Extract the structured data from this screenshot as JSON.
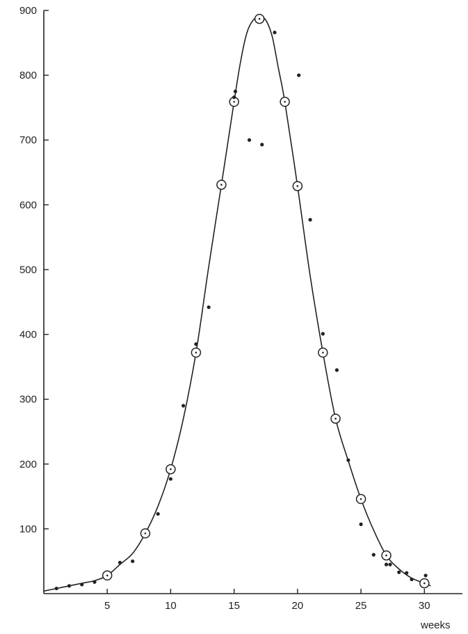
{
  "chart_data": {
    "type": "scatter",
    "title": "",
    "xlabel": "weeks",
    "ylabel": "",
    "xlim": [
      0,
      33
    ],
    "ylim": [
      0,
      900
    ],
    "x_ticks": [
      5,
      10,
      15,
      20,
      25,
      30
    ],
    "y_ticks": [
      100,
      200,
      300,
      400,
      500,
      600,
      700,
      800,
      900
    ],
    "grid": false,
    "series": [
      {
        "marker": "circle-open",
        "x": [
          5,
          8,
          10,
          12,
          14,
          15,
          17,
          19,
          20,
          22,
          23,
          25,
          27,
          30
        ],
        "y": [
          28,
          93,
          192,
          372,
          631,
          759,
          887,
          759,
          629,
          372,
          270,
          146,
          59,
          16
        ]
      },
      {
        "marker": "dot",
        "x": [
          1,
          2,
          3,
          4,
          6,
          7,
          9,
          10,
          11,
          12,
          13,
          15,
          15.1,
          16.2,
          17.2,
          18.2,
          20.1,
          21,
          22,
          23.1,
          24,
          25,
          26,
          27,
          27.3,
          28,
          28.6,
          29,
          30.1
        ],
        "y": [
          8,
          12,
          14,
          18,
          48,
          50,
          123,
          177,
          290,
          385,
          442,
          766,
          775,
          700,
          693,
          866,
          800,
          577,
          401,
          345,
          206,
          107,
          60,
          45,
          45,
          33,
          32,
          22,
          28
        ]
      },
      {
        "type": "line",
        "x": [
          0,
          1,
          2,
          3,
          4,
          5,
          6,
          7,
          8,
          9,
          10,
          11,
          12,
          13,
          14,
          15,
          15.5,
          16,
          16.5,
          17,
          17.5,
          18,
          18.5,
          19,
          20,
          21,
          22,
          23,
          24,
          25,
          26,
          27,
          28,
          29,
          30,
          30.5
        ],
        "y": [
          4,
          8,
          12,
          16,
          20,
          28,
          45,
          62,
          93,
          135,
          192,
          270,
          372,
          505,
          631,
          759,
          820,
          865,
          885,
          890,
          885,
          860,
          810,
          759,
          629,
          490,
          372,
          270,
          205,
          146,
          98,
          59,
          38,
          24,
          16,
          12
        ]
      }
    ]
  }
}
